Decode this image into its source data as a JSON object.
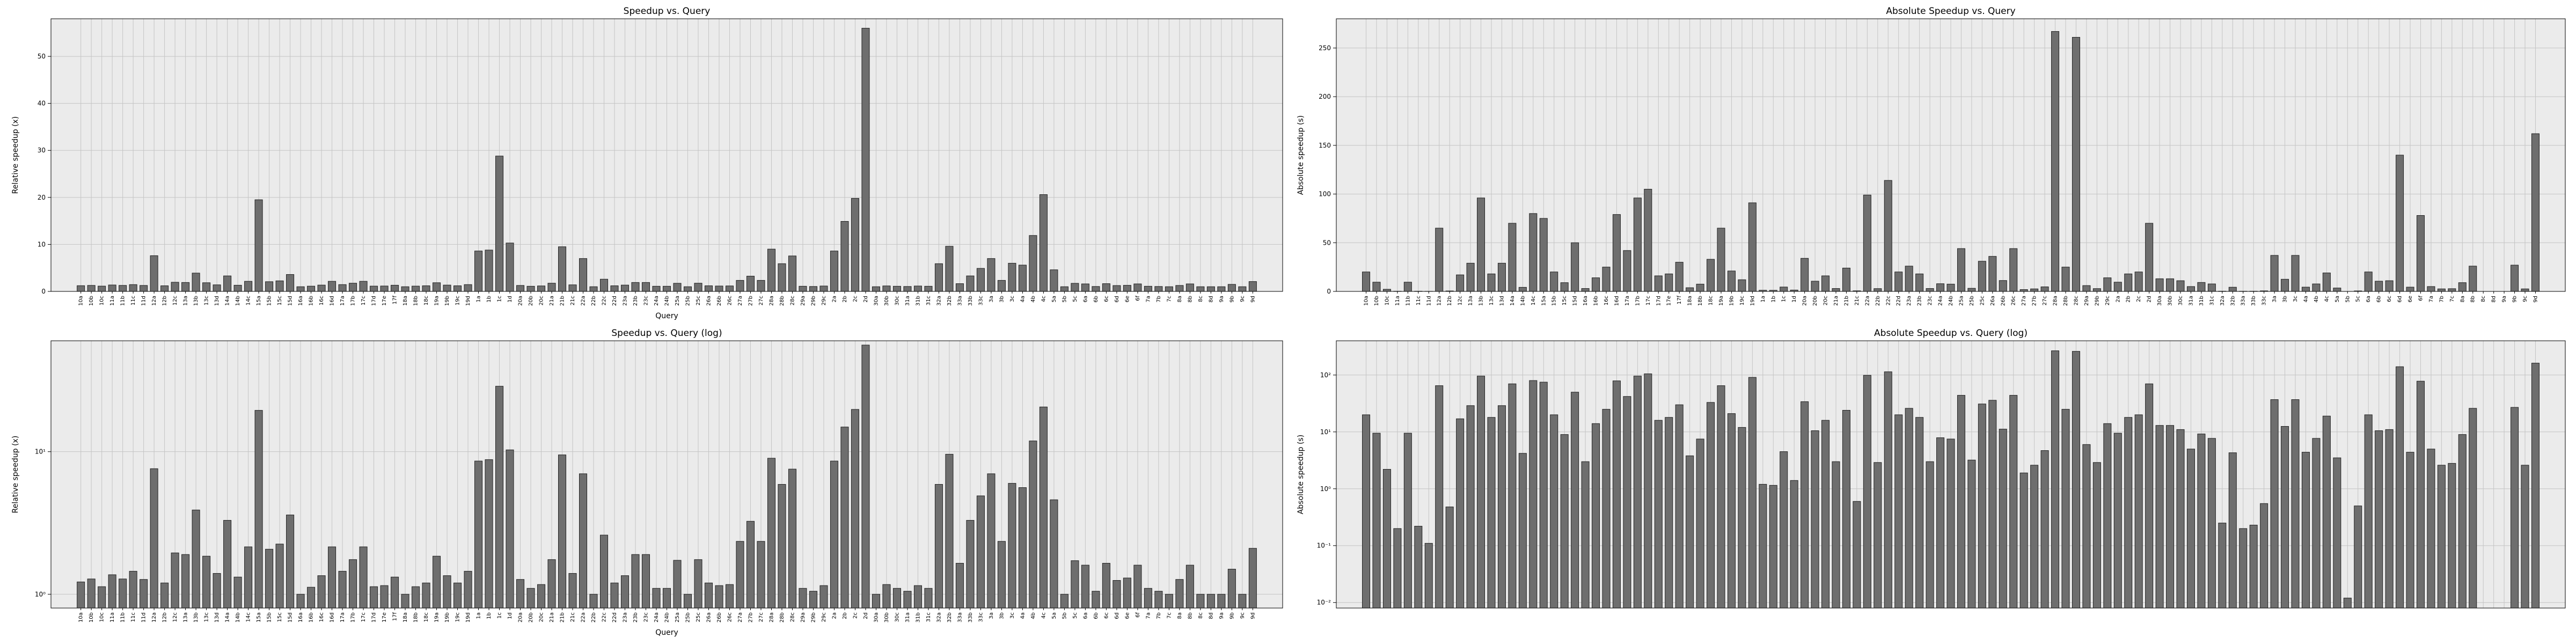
{
  "chart_data": [
    {
      "type": "bar",
      "title": "Speedup vs. Query",
      "xlabel": "Query",
      "ylabel": "Relative speedup (x)",
      "yscale": "linear",
      "ylim": [
        0,
        58
      ],
      "yticks": [
        0,
        10,
        20,
        30,
        40,
        50
      ],
      "ytick_labels": [
        "0",
        "10",
        "20",
        "30",
        "40",
        "50"
      ],
      "grid": true,
      "show_xticklabels": true,
      "series_ref": "relative"
    },
    {
      "type": "bar",
      "title": "Absolute Speedup vs. Query",
      "xlabel": "",
      "ylabel": "Absolute speedup (s)",
      "yscale": "linear",
      "ylim": [
        0,
        280
      ],
      "yticks": [
        0,
        50,
        100,
        150,
        200,
        250
      ],
      "ytick_labels": [
        "0",
        "50",
        "100",
        "150",
        "200",
        "250"
      ],
      "grid": true,
      "show_xticklabels": true,
      "series_ref": "absolute"
    },
    {
      "type": "bar",
      "title": "Speedup vs. Query (log)",
      "xlabel": "Query",
      "ylabel": "Relative speedup (x)",
      "yscale": "log",
      "ylim": [
        0.8,
        60
      ],
      "yticks": [
        1,
        10
      ],
      "ytick_labels": [
        "10⁰",
        "10¹"
      ],
      "grid": true,
      "show_xticklabels": true,
      "series_ref": "relative"
    },
    {
      "type": "bar",
      "title": "Absolute Speedup vs. Query (log)",
      "xlabel": "",
      "ylabel": "Absolute speedup (s)",
      "yscale": "log",
      "ylim": [
        0.008,
        400
      ],
      "yticks": [
        0.01,
        0.1,
        1,
        10,
        100
      ],
      "ytick_labels": [
        "10⁻²",
        "10⁻¹",
        "10⁰",
        "10¹",
        "10²"
      ],
      "grid": true,
      "show_xticklabels": false,
      "series_ref": "absolute"
    }
  ],
  "categories": [
    "10a",
    "10b",
    "10c",
    "11a",
    "11b",
    "11c",
    "11d",
    "12a",
    "12b",
    "12c",
    "13a",
    "13b",
    "13c",
    "13d",
    "14a",
    "14b",
    "14c",
    "15a",
    "15b",
    "15c",
    "15d",
    "16a",
    "16b",
    "16c",
    "16d",
    "17a",
    "17b",
    "17c",
    "17d",
    "17e",
    "17f",
    "18a",
    "18b",
    "18c",
    "19a",
    "19b",
    "19c",
    "19d",
    "1a",
    "1b",
    "1c",
    "1d",
    "20a",
    "20b",
    "20c",
    "21a",
    "21b",
    "21c",
    "22a",
    "22b",
    "22c",
    "22d",
    "23a",
    "23b",
    "23c",
    "24a",
    "24b",
    "25a",
    "25b",
    "25c",
    "26a",
    "26b",
    "26c",
    "27a",
    "27b",
    "27c",
    "28a",
    "28b",
    "28c",
    "29a",
    "29b",
    "29c",
    "2a",
    "2b",
    "2c",
    "2d",
    "30a",
    "30b",
    "30c",
    "31a",
    "31b",
    "31c",
    "32a",
    "32b",
    "33a",
    "33b",
    "33c",
    "3a",
    "3b",
    "3c",
    "4a",
    "4b",
    "4c",
    "5a",
    "5b",
    "5c",
    "6a",
    "6b",
    "6c",
    "6d",
    "6e",
    "6f",
    "7a",
    "7b",
    "7c",
    "8a",
    "8b",
    "8c",
    "8d",
    "9a",
    "9b",
    "9c",
    "9d"
  ],
  "series": {
    "relative": [
      1.22,
      1.28,
      1.13,
      1.37,
      1.28,
      1.45,
      1.27,
      7.6,
      1.2,
      1.95,
      1.9,
      3.9,
      1.85,
      1.4,
      3.3,
      1.32,
      2.15,
      19.5,
      2.07,
      2.25,
      3.6,
      1.0,
      1.12,
      1.35,
      2.15,
      1.45,
      1.75,
      2.15,
      1.13,
      1.15,
      1.32,
      1.0,
      1.13,
      1.2,
      1.85,
      1.35,
      1.2,
      1.45,
      8.6,
      8.8,
      28.8,
      10.3,
      1.27,
      1.1,
      1.17,
      1.75,
      9.5,
      1.4,
      7.0,
      1.0,
      2.6,
      1.2,
      1.35,
      1.9,
      1.9,
      1.1,
      1.1,
      1.73,
      1.0,
      1.75,
      1.2,
      1.15,
      1.17,
      2.35,
      3.25,
      2.35,
      9.0,
      5.9,
      7.55,
      1.1,
      1.05,
      1.15,
      8.6,
      14.9,
      19.8,
      56.0,
      1.0,
      1.17,
      1.1,
      1.05,
      1.15,
      1.1,
      5.9,
      9.6,
      1.65,
      3.3,
      4.9,
      7.0,
      2.35,
      6.0,
      5.6,
      11.9,
      20.6,
      4.6,
      1.0,
      1.72,
      1.6,
      1.05,
      1.65,
      1.25,
      1.3,
      1.6,
      1.1,
      1.05,
      1.0,
      1.27,
      1.6,
      1.0,
      1.0,
      1.0,
      1.5,
      1.0,
      2.1
    ],
    "absolute": [
      20,
      9.5,
      2.2,
      0.2,
      9.5,
      0.22,
      0.11,
      65,
      0.48,
      17,
      29,
      96,
      18,
      29,
      70,
      4.2,
      80,
      75,
      20,
      9,
      50,
      3,
      14,
      25,
      79,
      42,
      96,
      105,
      16,
      18,
      30,
      3.8,
      7.5,
      33,
      65,
      21,
      12,
      91,
      1.2,
      1.15,
      4.5,
      1.4,
      34,
      10.5,
      16,
      3,
      24,
      0.6,
      99,
      2.9,
      114,
      20,
      26,
      18,
      3,
      7.9,
      7.5,
      44,
      3.2,
      31,
      36,
      11.2,
      44,
      1.9,
      2.6,
      4.7,
      267,
      25,
      261,
      6,
      2.9,
      14,
      9.5,
      18,
      20,
      70,
      13,
      13,
      11,
      5,
      9.2,
      7.7,
      0.25,
      4.3,
      0.2,
      0.23,
      0.55,
      37,
      12.5,
      37,
      4.4,
      7.7,
      19,
      3.5,
      0.012,
      0.5,
      20,
      10.5,
      11,
      140,
      4.4,
      78,
      5,
      2.6,
      2.8,
      9,
      26,
      0.008,
      0.008,
      0.008,
      27,
      2.6,
      162
    ]
  }
}
